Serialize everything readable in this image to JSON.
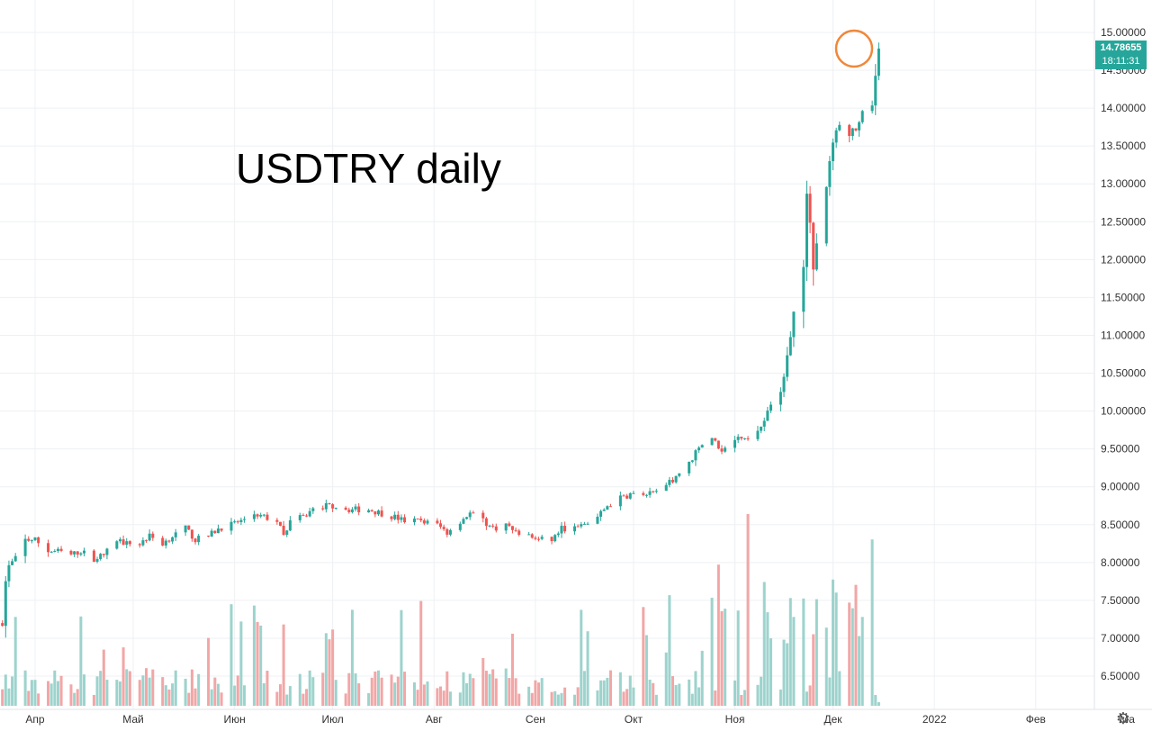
{
  "colors": {
    "up": "#26a69a",
    "down": "#ef5350",
    "up_volume": "#9dd3cd",
    "down_volume": "#f2a6a6",
    "grid": "#eef0f3",
    "axis_text": "#333333",
    "marker": "#f0873a",
    "last_price": "#26a69a"
  },
  "last_price": {
    "value": "14.78655",
    "countdown": "18:11:31"
  },
  "settings_icon": "gear-icon",
  "chart_data": {
    "type": "candlestick",
    "title": "USDTRY daily",
    "ylim": [
      6.25,
      15.25
    ],
    "y_ticks": [
      "6.50000",
      "7.00000",
      "7.50000",
      "8.00000",
      "8.50000",
      "9.00000",
      "9.50000",
      "10.00000",
      "10.50000",
      "11.00000",
      "11.50000",
      "12.00000",
      "12.50000",
      "13.00000",
      "13.50000",
      "14.00000",
      "14.50000",
      "15.00000"
    ],
    "x_ticks": [
      "Апр",
      "Май",
      "Июн",
      "Июл",
      "Авг",
      "Сен",
      "Окт",
      "Ноя",
      "Дек",
      "2022",
      "Фев",
      "Ма"
    ],
    "price_anchors": [
      [
        "2021-03-22",
        7.2
      ],
      [
        "2021-03-23",
        7.75
      ],
      [
        "2021-03-24",
        7.95
      ],
      [
        "2021-03-26",
        8.05
      ],
      [
        "2021-03-29",
        8.3
      ],
      [
        "2021-04-01",
        8.3
      ],
      [
        "2021-04-05",
        8.15
      ],
      [
        "2021-04-08",
        8.15
      ],
      [
        "2021-04-12",
        8.1
      ],
      [
        "2021-04-15",
        8.15
      ],
      [
        "2021-04-19",
        8.05
      ],
      [
        "2021-04-22",
        8.1
      ],
      [
        "2021-04-26",
        8.3
      ],
      [
        "2021-04-29",
        8.25
      ],
      [
        "2021-05-03",
        8.25
      ],
      [
        "2021-05-06",
        8.35
      ],
      [
        "2021-05-10",
        8.25
      ],
      [
        "2021-05-13",
        8.35
      ],
      [
        "2021-05-17",
        8.45
      ],
      [
        "2021-05-20",
        8.3
      ],
      [
        "2021-05-24",
        8.35
      ],
      [
        "2021-05-27",
        8.45
      ],
      [
        "2021-05-31",
        8.5
      ],
      [
        "2021-06-03",
        8.55
      ],
      [
        "2021-06-07",
        8.65
      ],
      [
        "2021-06-10",
        8.6
      ],
      [
        "2021-06-14",
        8.55
      ],
      [
        "2021-06-16",
        8.35
      ],
      [
        "2021-06-18",
        8.55
      ],
      [
        "2021-06-22",
        8.6
      ],
      [
        "2021-06-25",
        8.7
      ],
      [
        "2021-06-29",
        8.75
      ],
      [
        "2021-07-02",
        8.75
      ],
      [
        "2021-07-06",
        8.7
      ],
      [
        "2021-07-12",
        8.7
      ],
      [
        "2021-07-16",
        8.65
      ],
      [
        "2021-07-20",
        8.6
      ],
      [
        "2021-07-23",
        8.55
      ],
      [
        "2021-07-28",
        8.55
      ],
      [
        "2021-08-02",
        8.5
      ],
      [
        "2021-08-05",
        8.4
      ],
      [
        "2021-08-09",
        8.55
      ],
      [
        "2021-08-12",
        8.65
      ],
      [
        "2021-08-16",
        8.55
      ],
      [
        "2021-08-19",
        8.45
      ],
      [
        "2021-08-23",
        8.5
      ],
      [
        "2021-08-26",
        8.4
      ],
      [
        "2021-08-30",
        8.35
      ],
      [
        "2021-09-02",
        8.3
      ],
      [
        "2021-09-06",
        8.3
      ],
      [
        "2021-09-09",
        8.45
      ],
      [
        "2021-09-13",
        8.45
      ],
      [
        "2021-09-16",
        8.5
      ],
      [
        "2021-09-20",
        8.6
      ],
      [
        "2021-09-23",
        8.75
      ],
      [
        "2021-09-27",
        8.85
      ],
      [
        "2021-09-30",
        8.9
      ],
      [
        "2021-10-04",
        8.9
      ],
      [
        "2021-10-07",
        8.9
      ],
      [
        "2021-10-11",
        9.0
      ],
      [
        "2021-10-14",
        9.15
      ],
      [
        "2021-10-18",
        9.3
      ],
      [
        "2021-10-21",
        9.55
      ],
      [
        "2021-10-25",
        9.6
      ],
      [
        "2021-10-28",
        9.5
      ],
      [
        "2021-11-01",
        9.6
      ],
      [
        "2021-11-04",
        9.65
      ],
      [
        "2021-11-08",
        9.75
      ],
      [
        "2021-11-11",
        10.0
      ],
      [
        "2021-11-15",
        10.3
      ],
      [
        "2021-11-17",
        10.7
      ],
      [
        "2021-11-19",
        11.3
      ],
      [
        "2021-11-22",
        11.9
      ],
      [
        "2021-11-23",
        12.9
      ],
      [
        "2021-11-24",
        12.5
      ],
      [
        "2021-11-25",
        11.9
      ],
      [
        "2021-11-26",
        12.2
      ],
      [
        "2021-11-29",
        12.9
      ],
      [
        "2021-11-30",
        13.3
      ],
      [
        "2021-12-01",
        13.6
      ],
      [
        "2021-12-03",
        13.75
      ],
      [
        "2021-12-06",
        13.65
      ],
      [
        "2021-12-08",
        13.75
      ],
      [
        "2021-12-10",
        13.9
      ],
      [
        "2021-12-13",
        14.1
      ],
      [
        "2021-12-14",
        14.45
      ],
      [
        "2021-12-15",
        14.78655
      ]
    ]
  }
}
